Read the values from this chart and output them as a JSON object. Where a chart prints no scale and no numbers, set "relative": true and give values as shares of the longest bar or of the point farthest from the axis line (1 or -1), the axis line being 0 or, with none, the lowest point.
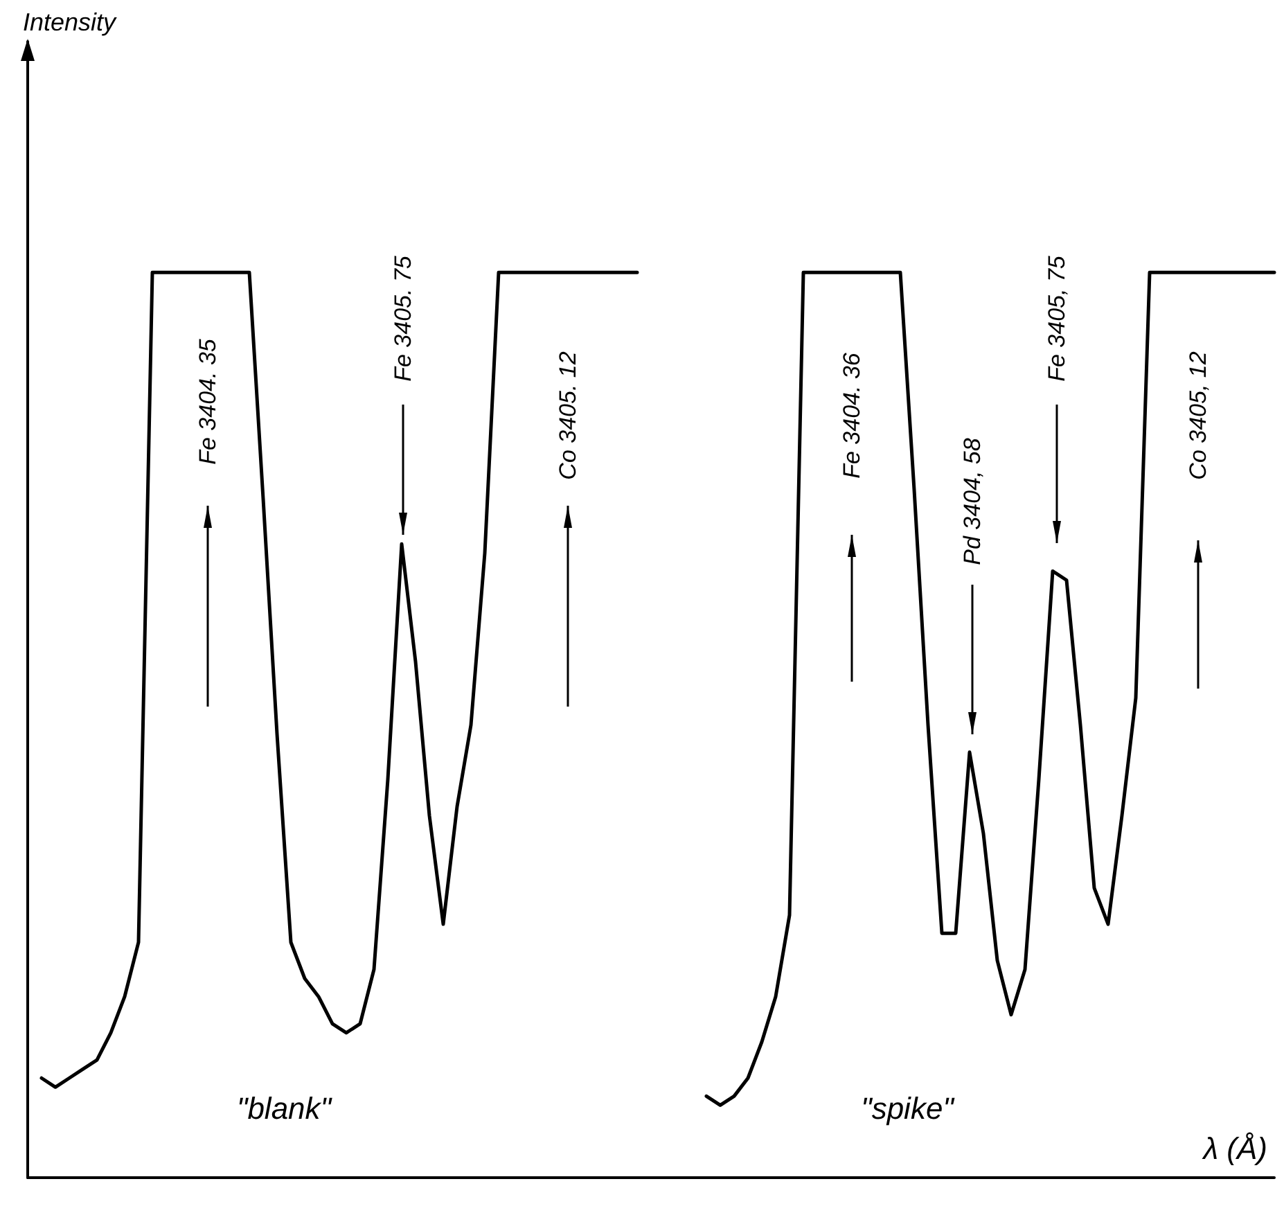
{
  "chart_data": {
    "type": "line",
    "relative": true,
    "xlabel": "λ (Å)",
    "categories": [
      null,
      null,
      null,
      null,
      null,
      null,
      null,
      null,
      null,
      null,
      null,
      null,
      null,
      null,
      null,
      null,
      null,
      null,
      null,
      null,
      null,
      null,
      null,
      null,
      null,
      null,
      null,
      null,
      null,
      null,
      null,
      null,
      null,
      null,
      null,
      null,
      null,
      null,
      null,
      null,
      null,
      null,
      null,
      null,
      null,
      null,
      null,
      null,
      null,
      null,
      null,
      null,
      null,
      null,
      null,
      null,
      null,
      null,
      null,
      null,
      null,
      null,
      null,
      null,
      null,
      null,
      null,
      null,
      null,
      null,
      null,
      null,
      null,
      null,
      null,
      null,
      null,
      null,
      null,
      null,
      null,
      null,
      null,
      null,
      null,
      null,
      null,
      null,
      null,
      null,
      null
    ],
    "series": [
      {
        "color": "#000000",
        "values": [
          null,
          0.11,
          0.1,
          0.11,
          0.12,
          0.13,
          0.16,
          0.2,
          0.26,
          1.0,
          1.0,
          1.0,
          1.0,
          1.0,
          1.0,
          1.0,
          1.0,
          0.75,
          0.49,
          0.26,
          0.22,
          0.2,
          0.17,
          0.16,
          0.17,
          0.23,
          0.44,
          0.7,
          0.57,
          0.4,
          0.28,
          0.41,
          0.5,
          0.69,
          1.0,
          1.0,
          1.0,
          1.0,
          1.0,
          1.0,
          1.0,
          1.0,
          1.0,
          1.0,
          1.0,
          null,
          null,
          null,
          null,
          null,
          null,
          null,
          null,
          null,
          null,
          null,
          null,
          null,
          null,
          null,
          null,
          null,
          null,
          null,
          null,
          null,
          null,
          null,
          null,
          null,
          null,
          null,
          null,
          null,
          null,
          null,
          null,
          null,
          null,
          null,
          null,
          null,
          null,
          null,
          null,
          null,
          null,
          null,
          null,
          null,
          null
        ]
      },
      {
        "color": "#000000",
        "values": [
          null,
          null,
          null,
          null,
          null,
          null,
          null,
          null,
          null,
          null,
          null,
          null,
          null,
          null,
          null,
          null,
          null,
          null,
          null,
          null,
          null,
          null,
          null,
          null,
          null,
          null,
          null,
          null,
          null,
          null,
          null,
          null,
          null,
          null,
          null,
          null,
          null,
          null,
          null,
          null,
          null,
          null,
          null,
          null,
          null,
          null,
          null,
          null,
          null,
          0.09,
          0.08,
          0.09,
          0.11,
          0.15,
          0.2,
          0.29,
          1.0,
          1.0,
          1.0,
          1.0,
          1.0,
          1.0,
          1.0,
          1.0,
          0.76,
          0.5,
          0.27,
          0.27,
          0.47,
          0.38,
          0.24,
          0.18,
          0.23,
          0.44,
          0.67,
          0.66,
          0.5,
          0.32,
          0.28,
          0.4,
          0.53,
          1.0,
          1.0,
          1.0,
          1.0,
          1.0,
          1.0,
          1.0,
          1.0,
          1.0,
          1.0
        ]
      }
    ],
    "annotations": [
      "Fe 3404. 35",
      "Fe 3405. 75",
      "Co 3405. 12",
      "Fe 3404. 36",
      "Pd 3404, 58",
      "Fe 3405, 75",
      "Co 3405, 12",
      "\"blank\"",
      "\"spike\"",
      "Intensity"
    ]
  }
}
